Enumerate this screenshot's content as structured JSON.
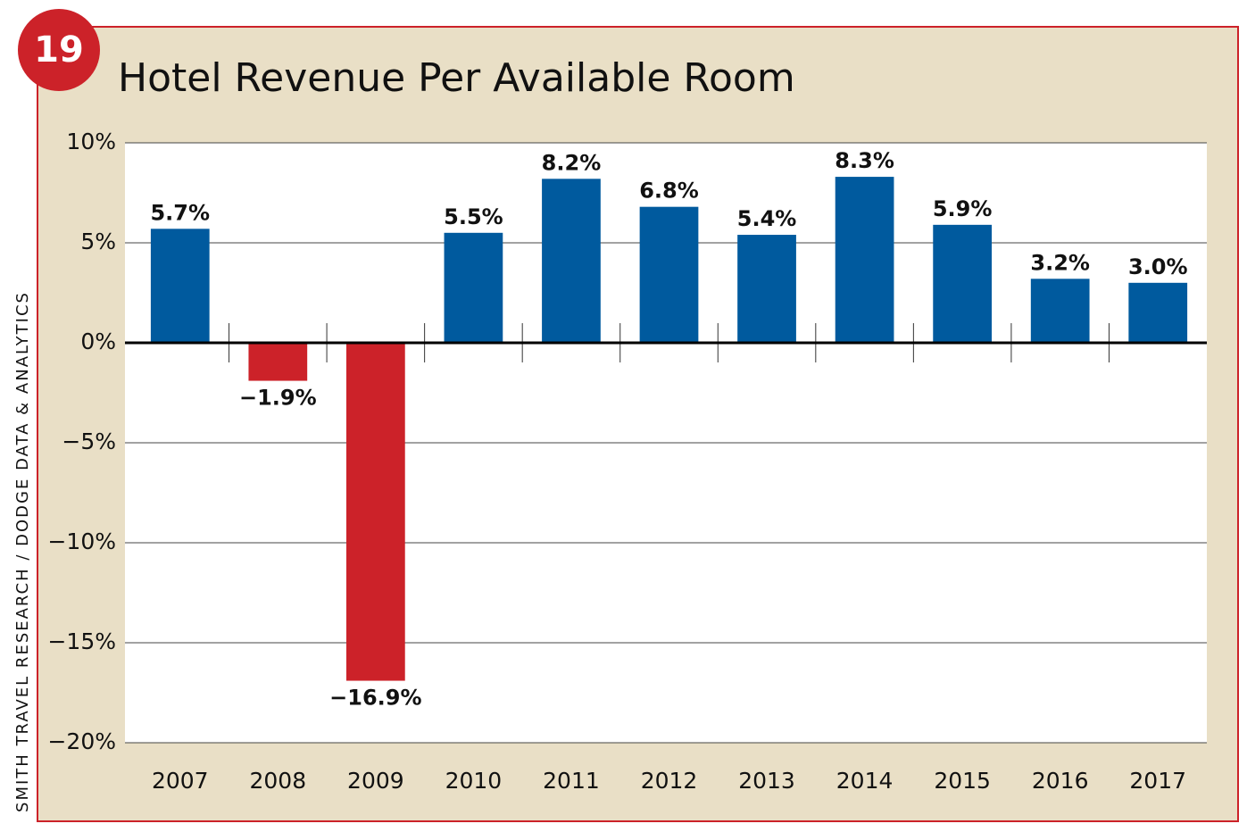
{
  "badge": "19",
  "source": "SMITH TRAVEL RESEARCH / DODGE DATA & ANALYTICS",
  "chart_data": {
    "type": "bar",
    "title": "Hotel Revenue Per Available Room",
    "categories": [
      "2007",
      "2008",
      "2009",
      "2010",
      "2011",
      "2012",
      "2013",
      "2014",
      "2015",
      "2016",
      "2017"
    ],
    "values": [
      5.7,
      -1.9,
      -16.9,
      5.5,
      8.2,
      6.8,
      5.4,
      8.3,
      5.9,
      3.2,
      3.0
    ],
    "value_labels": [
      "5.7%",
      "−1.9%",
      "−16.9%",
      "5.5%",
      "8.2%",
      "6.8%",
      "5.4%",
      "8.3%",
      "5.9%",
      "3.2%",
      "3.0%"
    ],
    "positive_color": "#005a9e",
    "negative_color": "#cc2229",
    "ylim": [
      -20,
      10
    ],
    "yticks": [
      {
        "value": 10,
        "label": "10%"
      },
      {
        "value": 5,
        "label": "5%"
      },
      {
        "value": 0,
        "label": "0%"
      },
      {
        "value": -5,
        "label": "−5%"
      },
      {
        "value": -10,
        "label": "−10%"
      },
      {
        "value": -15,
        "label": "−15%"
      },
      {
        "value": -20,
        "label": "−20%"
      }
    ],
    "grid": true
  }
}
